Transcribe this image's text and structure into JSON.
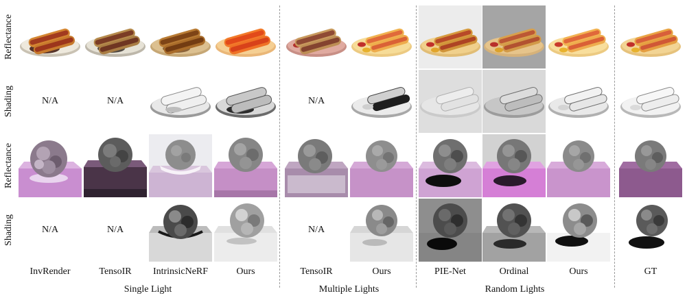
{
  "row_labels": [
    "Reflectance",
    "Shading",
    "Reflectance",
    "Shading"
  ],
  "na_text": "N/A",
  "methods": [
    "InvRender",
    "TensoIR",
    "IntrinsicNeRF",
    "Ours",
    "TensoIR",
    "Ours",
    "PIE-Net",
    "Ordinal",
    "Ours",
    "GT"
  ],
  "groups": [
    "Single Light",
    "Multiple Lights",
    "Random Lights"
  ],
  "colors": {
    "bun": "#e9a445",
    "sausage": "#b5452a",
    "ketchup": "#c0302b",
    "mustard": "#e7b12c",
    "plate_warm": "#f2d79a",
    "pink_floor": "#c58fc6",
    "dark_floor": "#5a3e55",
    "separator": "#9a9a9a"
  }
}
